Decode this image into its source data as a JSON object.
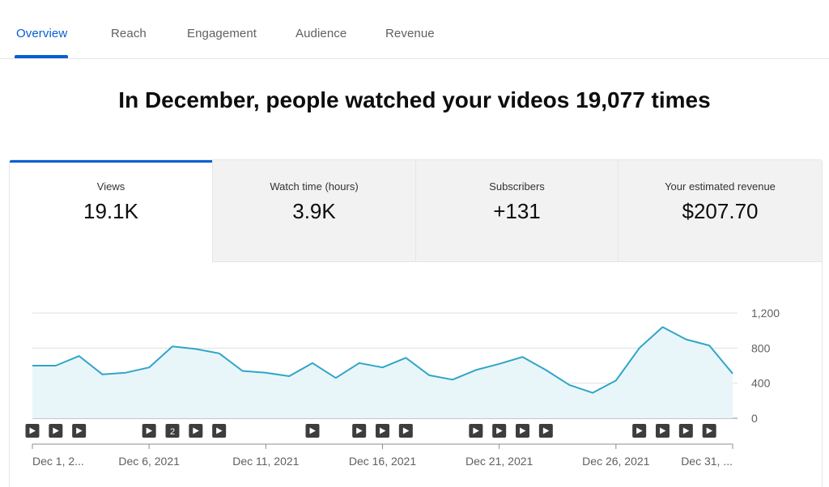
{
  "tabs": [
    {
      "label": "Overview",
      "active": true
    },
    {
      "label": "Reach",
      "active": false
    },
    {
      "label": "Engagement",
      "active": false
    },
    {
      "label": "Audience",
      "active": false
    },
    {
      "label": "Revenue",
      "active": false
    }
  ],
  "headline": "In December, people watched your videos 19,077 times",
  "metrics": [
    {
      "label": "Views",
      "value": "19.1K"
    },
    {
      "label": "Watch time (hours)",
      "value": "3.9K"
    },
    {
      "label": "Subscribers",
      "value": "+131"
    },
    {
      "label": "Your estimated revenue",
      "value": "$207.70"
    }
  ],
  "colors": {
    "accent": "#065fd4",
    "line": "#31a5c8",
    "fill": "#e8f6fa"
  },
  "chart_data": {
    "type": "area",
    "x": [
      "Dec 1",
      "Dec 2",
      "Dec 3",
      "Dec 4",
      "Dec 5",
      "Dec 6",
      "Dec 7",
      "Dec 8",
      "Dec 9",
      "Dec 10",
      "Dec 11",
      "Dec 12",
      "Dec 13",
      "Dec 14",
      "Dec 15",
      "Dec 16",
      "Dec 17",
      "Dec 18",
      "Dec 19",
      "Dec 20",
      "Dec 21",
      "Dec 22",
      "Dec 23",
      "Dec 24",
      "Dec 25",
      "Dec 26",
      "Dec 27",
      "Dec 28",
      "Dec 29",
      "Dec 30",
      "Dec 31"
    ],
    "series": [
      {
        "values": [
          600,
          600,
          710,
          500,
          520,
          580,
          820,
          790,
          740,
          540,
          520,
          480,
          630,
          460,
          630,
          580,
          690,
          490,
          440,
          550,
          620,
          700,
          550,
          380,
          290,
          430,
          800,
          1040,
          900,
          830,
          510
        ]
      }
    ],
    "y_ticks": [
      "1,200",
      "800",
      "400",
      "0"
    ],
    "y_tick_values": [
      1200,
      800,
      400,
      0
    ],
    "ylim": [
      0,
      1200
    ],
    "x_tick_labels": [
      "Dec 1, 2...",
      "Dec 6, 2021",
      "Dec 11, 2021",
      "Dec 16, 2021",
      "Dec 21, 2021",
      "Dec 26, 2021",
      "Dec 31, ..."
    ],
    "x_tick_indices": [
      0,
      5,
      10,
      15,
      20,
      25,
      30
    ],
    "grid": true,
    "video_markers": [
      {
        "day_index": 0,
        "label": ""
      },
      {
        "day_index": 1,
        "label": ""
      },
      {
        "day_index": 2,
        "label": ""
      },
      {
        "day_index": 5,
        "label": ""
      },
      {
        "day_index": 6,
        "label": "2"
      },
      {
        "day_index": 7,
        "label": ""
      },
      {
        "day_index": 8,
        "label": ""
      },
      {
        "day_index": 12,
        "label": ""
      },
      {
        "day_index": 14,
        "label": ""
      },
      {
        "day_index": 15,
        "label": ""
      },
      {
        "day_index": 16,
        "label": ""
      },
      {
        "day_index": 19,
        "label": ""
      },
      {
        "day_index": 20,
        "label": ""
      },
      {
        "day_index": 21,
        "label": ""
      },
      {
        "day_index": 22,
        "label": ""
      },
      {
        "day_index": 26,
        "label": ""
      },
      {
        "day_index": 27,
        "label": ""
      },
      {
        "day_index": 28,
        "label": ""
      },
      {
        "day_index": 29,
        "label": ""
      }
    ]
  }
}
